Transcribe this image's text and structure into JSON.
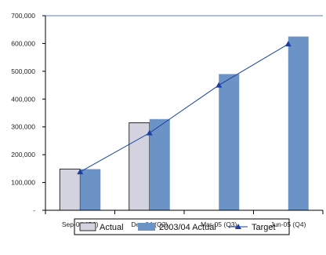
{
  "colors": {
    "actual": "#d3d3df",
    "actual_2003_04": "#6b93c6",
    "target": "#1a3fa0",
    "axis": "#000000",
    "top_line": "#5b7fc0"
  },
  "chart_data": {
    "type": "bar",
    "categories": [
      "Sep-04 (Q1)",
      "Dec-04 (Q2)",
      "Mar-05 (Q3)",
      "Jun-05 (Q4)"
    ],
    "series": [
      {
        "name": "Actual",
        "type": "bar",
        "values": [
          148000,
          315000,
          null,
          null
        ]
      },
      {
        "name": "2003/04 Actual",
        "type": "bar",
        "values": [
          148000,
          328000,
          490000,
          625000
        ]
      },
      {
        "name": "Target",
        "type": "line",
        "marker": "triangle",
        "values": [
          138000,
          278000,
          450000,
          598000
        ]
      }
    ],
    "ylim": [
      0,
      700000
    ],
    "yticks": [
      "-",
      "100,000",
      "200,000",
      "300,000",
      "400,000",
      "500,000",
      "600,000",
      "700,000"
    ],
    "legend_position": "bottom",
    "grid": false
  }
}
